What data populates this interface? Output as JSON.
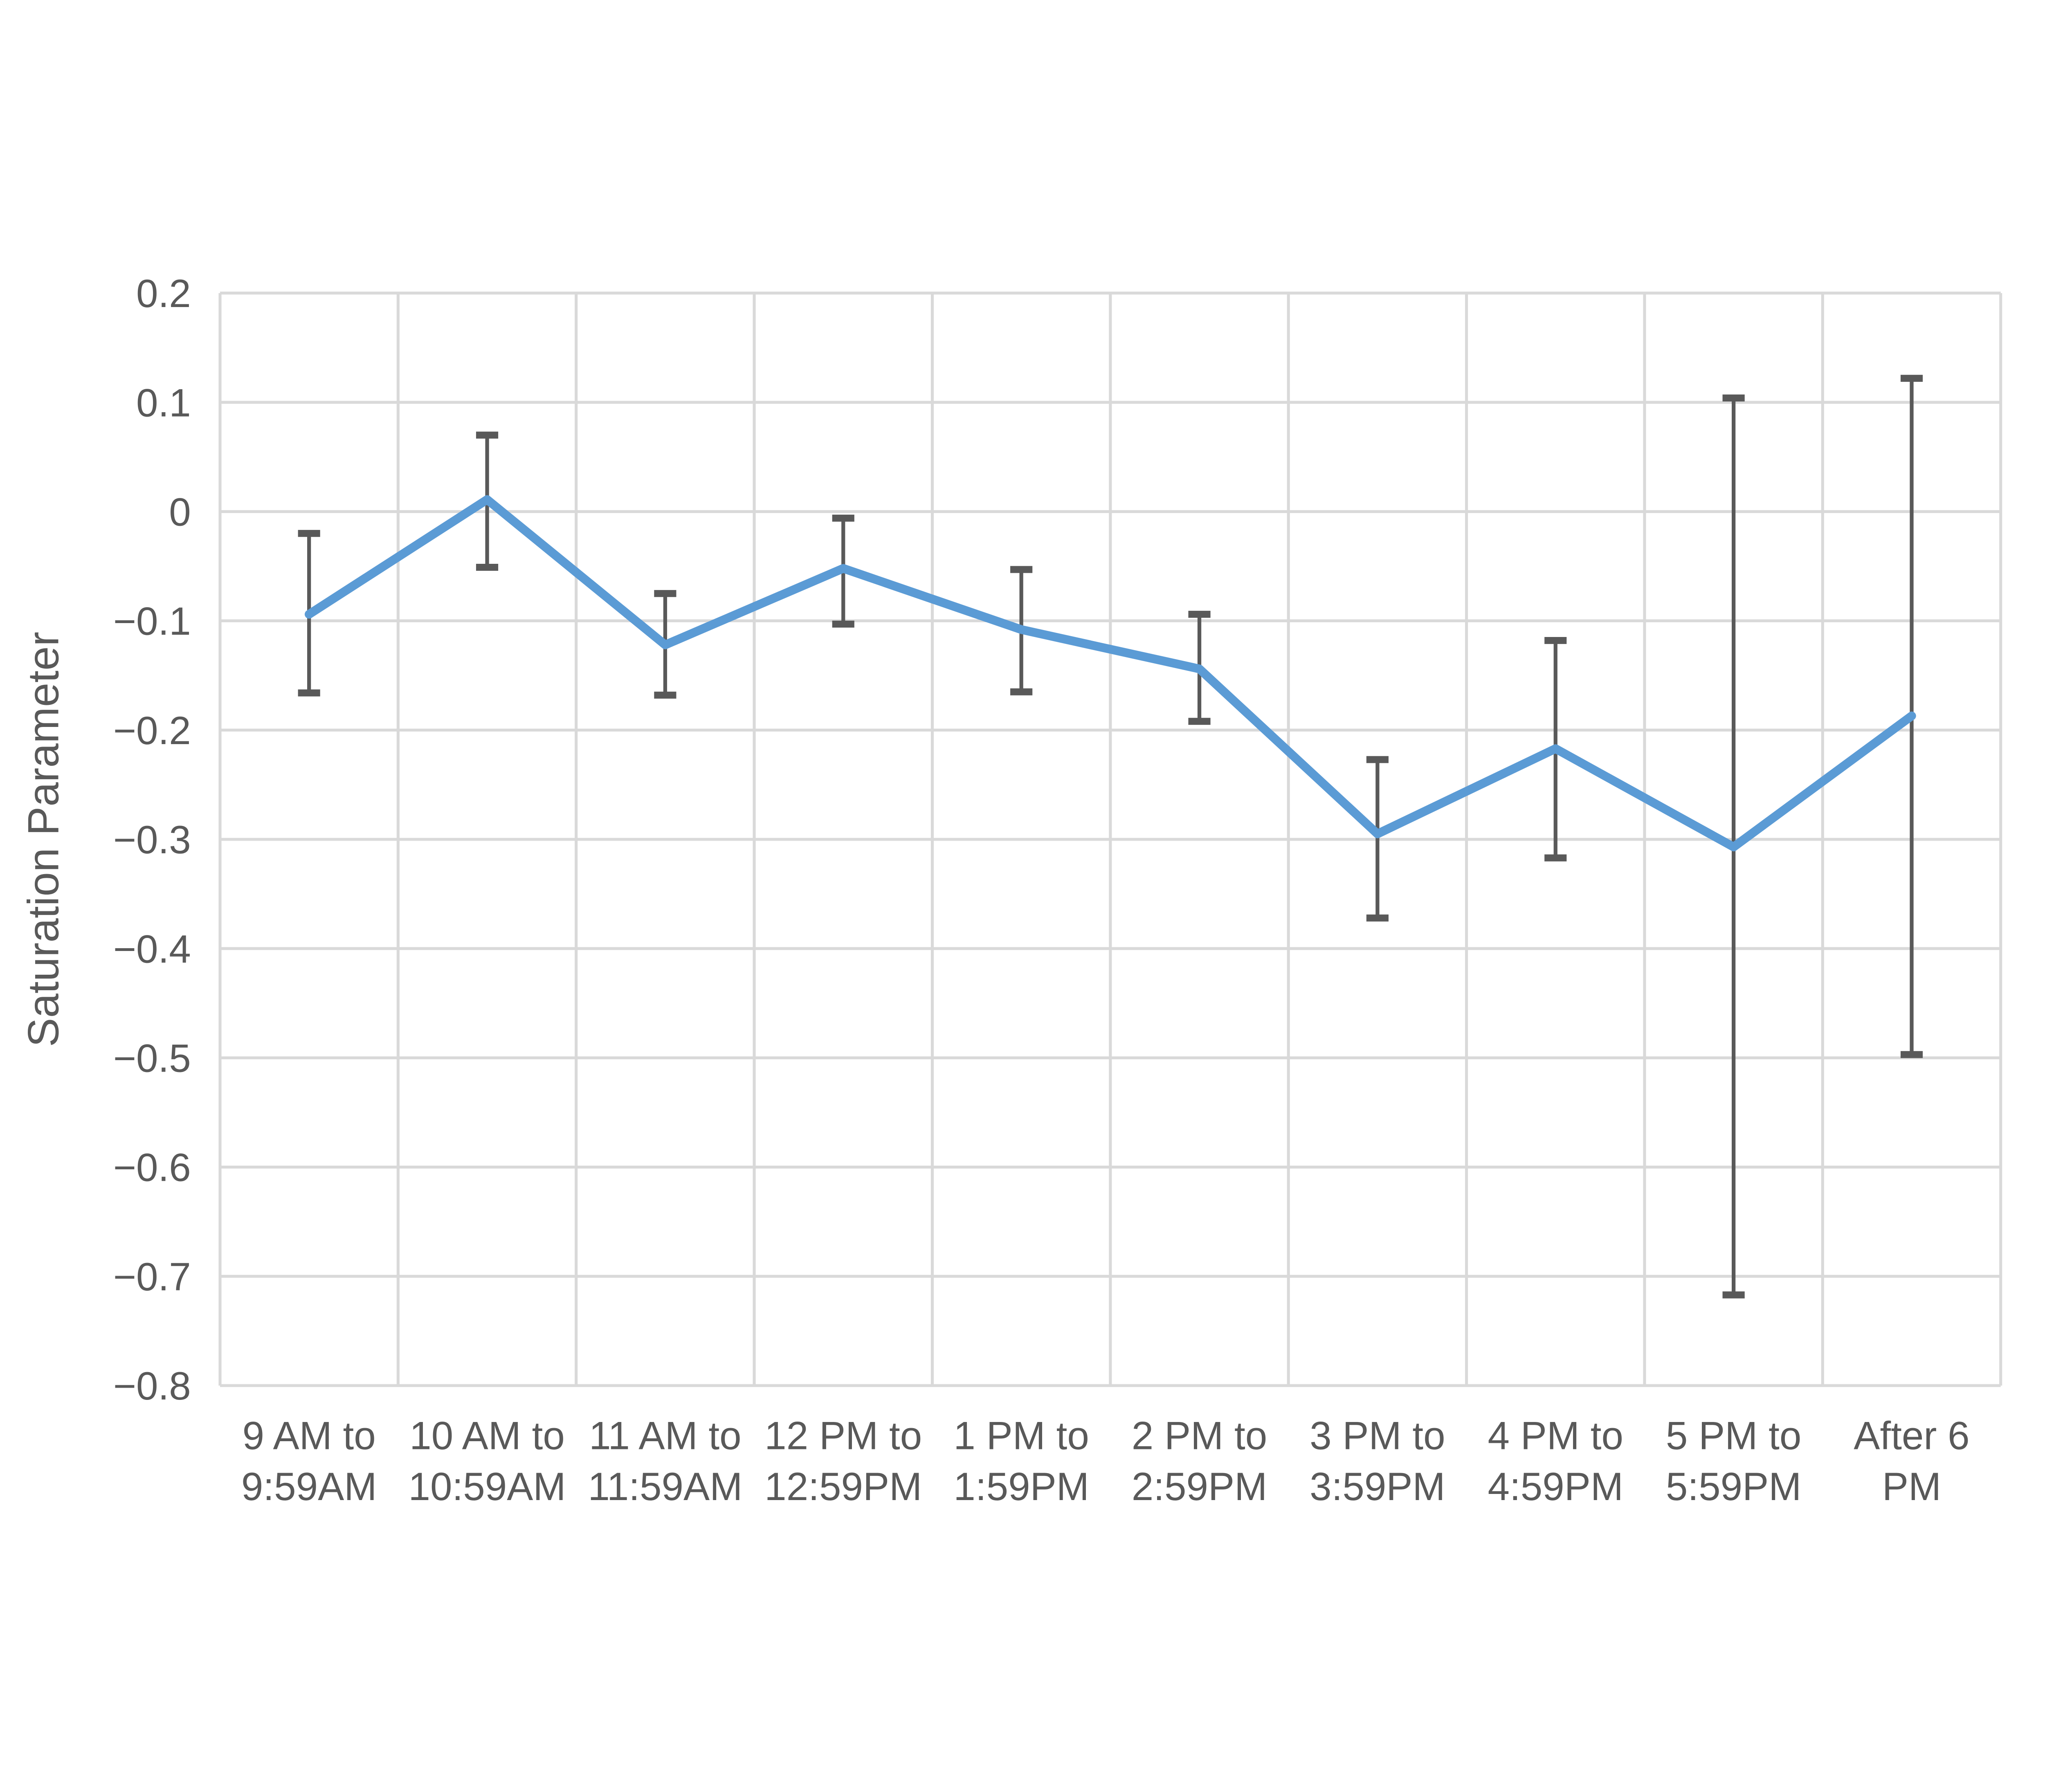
{
  "chart_data": {
    "type": "line",
    "title": "",
    "xlabel": "",
    "ylabel": "Saturation Parameter",
    "categories": [
      "9 AM to 9:59AM",
      "10 AM to 10:59AM",
      "11 AM to 11:59AM",
      "12 PM to 12:59PM",
      "1 PM to 1:59PM",
      "2 PM to 2:59PM",
      "3 PM to 3:59PM",
      "4 PM to 4:59PM",
      "5 PM to 5:59PM",
      "After 6 PM"
    ],
    "category_label_lines": [
      [
        "9 AM to",
        "9:59AM"
      ],
      [
        "10 AM to",
        "10:59AM"
      ],
      [
        "11 AM to",
        "11:59AM"
      ],
      [
        "12 PM to",
        "12:59PM"
      ],
      [
        "1 PM to",
        "1:59PM"
      ],
      [
        "2 PM to",
        "2:59PM"
      ],
      [
        "3 PM to",
        "3:59PM"
      ],
      [
        "4 PM to",
        "4:59PM"
      ],
      [
        "5 PM to",
        "5:59PM"
      ],
      [
        "After 6",
        "PM"
      ]
    ],
    "series": [
      {
        "name": "Saturation Parameter",
        "values": [
          -0.094,
          0.011,
          -0.122,
          -0.052,
          -0.108,
          -0.144,
          -0.295,
          -0.217,
          -0.307,
          -0.187
        ],
        "error_low": [
          -0.166,
          -0.051,
          -0.168,
          -0.103,
          -0.165,
          -0.192,
          -0.372,
          -0.317,
          -0.717,
          -0.497
        ],
        "error_high": [
          -0.02,
          0.07,
          -0.075,
          -0.006,
          -0.053,
          -0.094,
          -0.227,
          -0.118,
          0.104,
          0.122
        ]
      }
    ],
    "ylim": [
      -0.8,
      0.2
    ],
    "ytick_step": 0.1,
    "ytick_labels": [
      "0.2",
      "0.1",
      "0",
      "−0.1",
      "−0.2",
      "−0.3",
      "−0.4",
      "−0.5",
      "−0.6",
      "−0.7",
      "−0.8"
    ],
    "grid": true,
    "legend": false,
    "colors": {
      "line": "#5B9BD5",
      "error_bar": "#595959",
      "gridline": "#D9D9D9",
      "text": "#595959",
      "background": "#FFFFFF"
    }
  }
}
